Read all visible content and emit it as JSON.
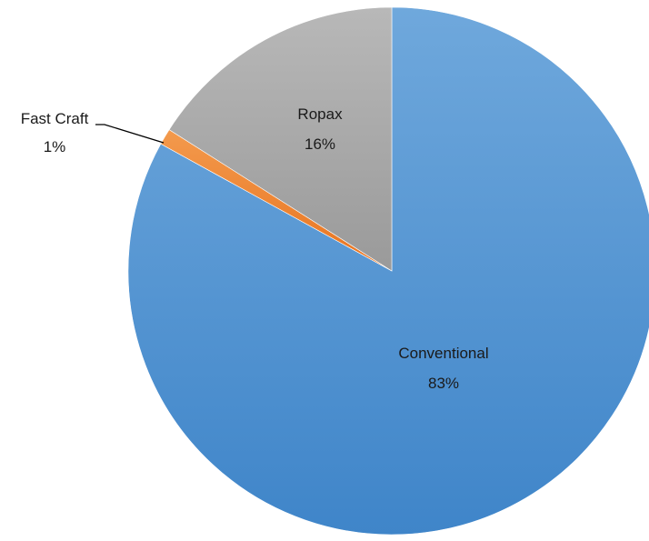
{
  "chart_data": {
    "type": "pie",
    "title": "",
    "start_angle_deg": 0,
    "direction": "clockwise",
    "legend": "none",
    "slices": [
      {
        "label": "Conventional",
        "value": 83,
        "value_label": "83%",
        "color": "#5b9bd5"
      },
      {
        "label": "Fast Craft",
        "value": 1,
        "value_label": "1%",
        "color": "#ed7d31"
      },
      {
        "label": "Ropax",
        "value": 16,
        "value_label": "16%",
        "color": "#a5a5a5"
      }
    ]
  }
}
